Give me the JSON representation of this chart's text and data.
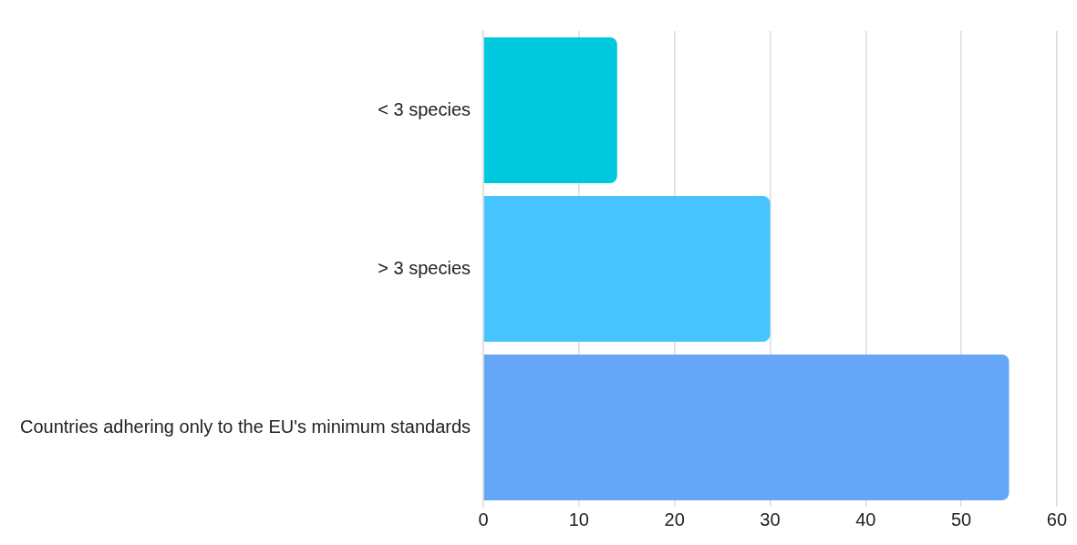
{
  "chart_data": {
    "type": "bar",
    "orientation": "horizontal",
    "categories": [
      "< 3 species",
      "> 3 species",
      "Countries adhering only to the EU's minimum standards"
    ],
    "values": [
      14,
      30,
      55
    ],
    "colors": [
      "#00c9de",
      "#47c4fd",
      "#65a6f8"
    ],
    "xlim": [
      0,
      60
    ],
    "xticks": [
      0,
      10,
      20,
      30,
      40,
      50,
      60
    ],
    "grid": "x",
    "legend": false
  }
}
